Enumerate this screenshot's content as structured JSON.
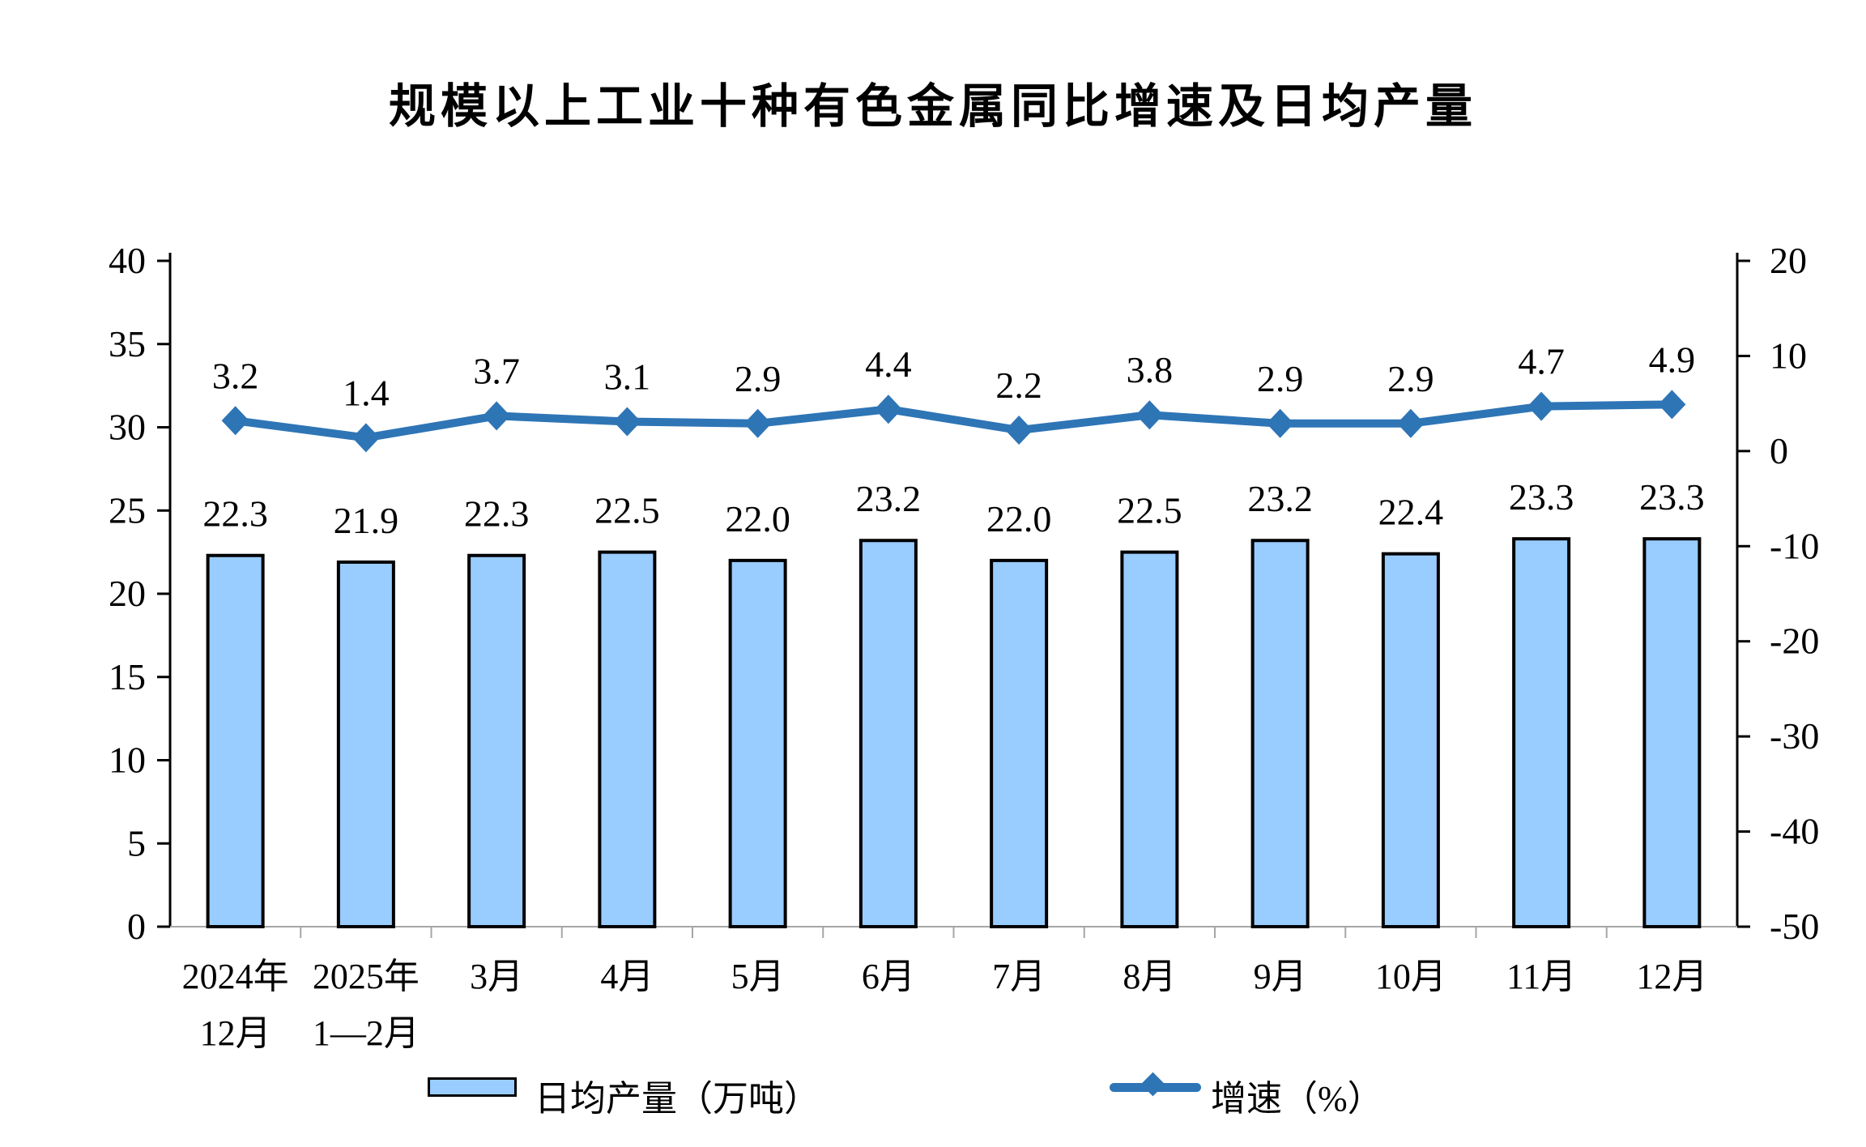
{
  "title": "规模以上工业十种有色金属同比增速及日均产量",
  "legend": {
    "bar_label": "日均产量（万吨）",
    "line_label": "增速（%）"
  },
  "colors": {
    "bar_fill": "#99CCFF",
    "bar_border": "#000000",
    "line": "#2E75B6",
    "axis": "#000000",
    "baseline": "#A6A6A6",
    "text": "#000000"
  },
  "chart_data": {
    "type": "bar",
    "subtype": "combo-bar-line",
    "title": "规模以上工业十种有色金属同比增速及日均产量",
    "categories": [
      [
        "2024年",
        "12月"
      ],
      [
        "2025年",
        "1—2月"
      ],
      [
        "3月"
      ],
      [
        "4月"
      ],
      [
        "5月"
      ],
      [
        "6月"
      ],
      [
        "7月"
      ],
      [
        "8月"
      ],
      [
        "9月"
      ],
      [
        "10月"
      ],
      [
        "11月"
      ],
      [
        "12月"
      ]
    ],
    "series": [
      {
        "name": "日均产量（万吨）",
        "type": "bar",
        "axis": "left",
        "values": [
          22.3,
          21.9,
          22.3,
          22.5,
          22.0,
          23.2,
          22.0,
          22.5,
          23.2,
          22.4,
          23.3,
          23.3
        ]
      },
      {
        "name": "增速（%）",
        "type": "line",
        "axis": "right",
        "values": [
          3.2,
          1.4,
          3.7,
          3.1,
          2.9,
          4.4,
          2.2,
          3.8,
          2.9,
          2.9,
          4.7,
          4.9
        ]
      }
    ],
    "left_axis": {
      "min": 0,
      "max": 40,
      "step": 5,
      "tick_labels": [
        "40",
        "35",
        "30",
        "25",
        "20",
        "15",
        "10",
        "5",
        "0"
      ]
    },
    "right_axis": {
      "min": -50,
      "max": 20,
      "step": 10,
      "tick_labels": [
        "20",
        "10",
        "0",
        "-10",
        "-20",
        "-30",
        "-40",
        "-50"
      ]
    },
    "grid": false,
    "legend_position": "bottom",
    "data_labels_decimals": 1
  }
}
